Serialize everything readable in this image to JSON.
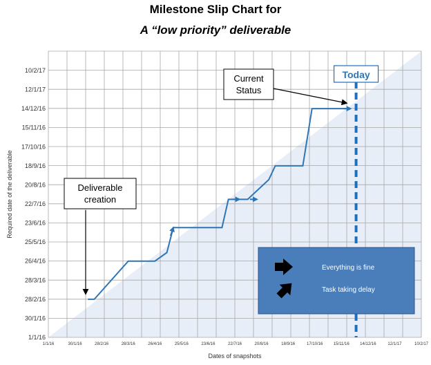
{
  "chart_data": {
    "type": "line",
    "title": "Milestone Slip Chart for",
    "subtitle": "A “low priority” deliverable",
    "xlabel": "Dates of snapshots",
    "ylabel": "Required date of the deliverable",
    "y_ticks": [
      "1/1/16",
      "30/1/16",
      "28/2/16",
      "28/3/16",
      "26/4/16",
      "25/5/16",
      "23/6/16",
      "22/7/16",
      "20/8/16",
      "18/9/16",
      "17/10/16",
      "15/11/16",
      "14/12/16",
      "12/1/17",
      "10/2/17"
    ],
    "x_ticks": [
      "1/1/16",
      "30/1/16",
      "28/2/16",
      "28/3/16",
      "26/4/16",
      "25/5/16",
      "23/6/16",
      "22/7/16",
      "20/8/16",
      "18/9/16",
      "17/10/16",
      "15/11/16",
      "14/12/16",
      "12/1/17",
      "10/2/17"
    ],
    "y_range": [
      "1/1/16",
      "10/2/17"
    ],
    "x_range": [
      "1/1/16",
      "10/2/17"
    ],
    "grid": true,
    "series": [
      {
        "points": [
          [
            "13/2/16",
            "28/2/16"
          ],
          [
            "20/2/16",
            "28/2/16"
          ],
          [
            "28/3/16",
            "26/4/16"
          ],
          [
            "26/4/16",
            "26/4/16"
          ],
          [
            "9/5/16",
            "9/5/16"
          ],
          [
            "16/5/16",
            "16/6/16"
          ],
          [
            "8/7/16",
            "16/6/16"
          ],
          [
            "15/7/16",
            "29/7/16"
          ],
          [
            "5/8/16",
            "29/7/16"
          ],
          [
            "28/8/16",
            "28/8/16"
          ],
          [
            "4/9/16",
            "18/9/16"
          ],
          [
            "4/10/16",
            "18/9/16"
          ],
          [
            "14/10/16",
            "14/12/16"
          ],
          [
            "25/11/16",
            "14/12/16"
          ]
        ]
      }
    ],
    "arrow_markers": [
      {
        "at": [
          "16/5/16",
          "16/6/16"
        ],
        "direction": "up-right"
      },
      {
        "at": [
          "27/7/16",
          "29/7/16"
        ],
        "direction": "right"
      },
      {
        "at": [
          "15/8/16",
          "29/7/16"
        ],
        "direction": "right"
      },
      {
        "at": [
          "25/11/16",
          "14/12/16"
        ],
        "direction": "right"
      }
    ],
    "today_date": "1/12/16",
    "today_label": "Today",
    "annotations": [
      {
        "text_lines": [
          "Deliverable",
          "creation"
        ],
        "points_to": [
          "13/2/16",
          "28/2/16"
        ]
      },
      {
        "text_lines": [
          "Current",
          "Status"
        ],
        "points_to": [
          "25/11/16",
          "14/12/16"
        ]
      }
    ],
    "legend": {
      "placement": "bottom-right",
      "items": [
        {
          "label": "Everything is fine",
          "icon": "arrow-right-icon"
        },
        {
          "label": "Task taking delay",
          "icon": "arrow-up-right-icon"
        }
      ]
    },
    "colors": {
      "line": "#2e75b6",
      "today_line": "#1f6fc0",
      "shaded_region": "#e8eef7",
      "legend_bg": "#4a7ebb",
      "grid": "#a6a6a6"
    }
  }
}
